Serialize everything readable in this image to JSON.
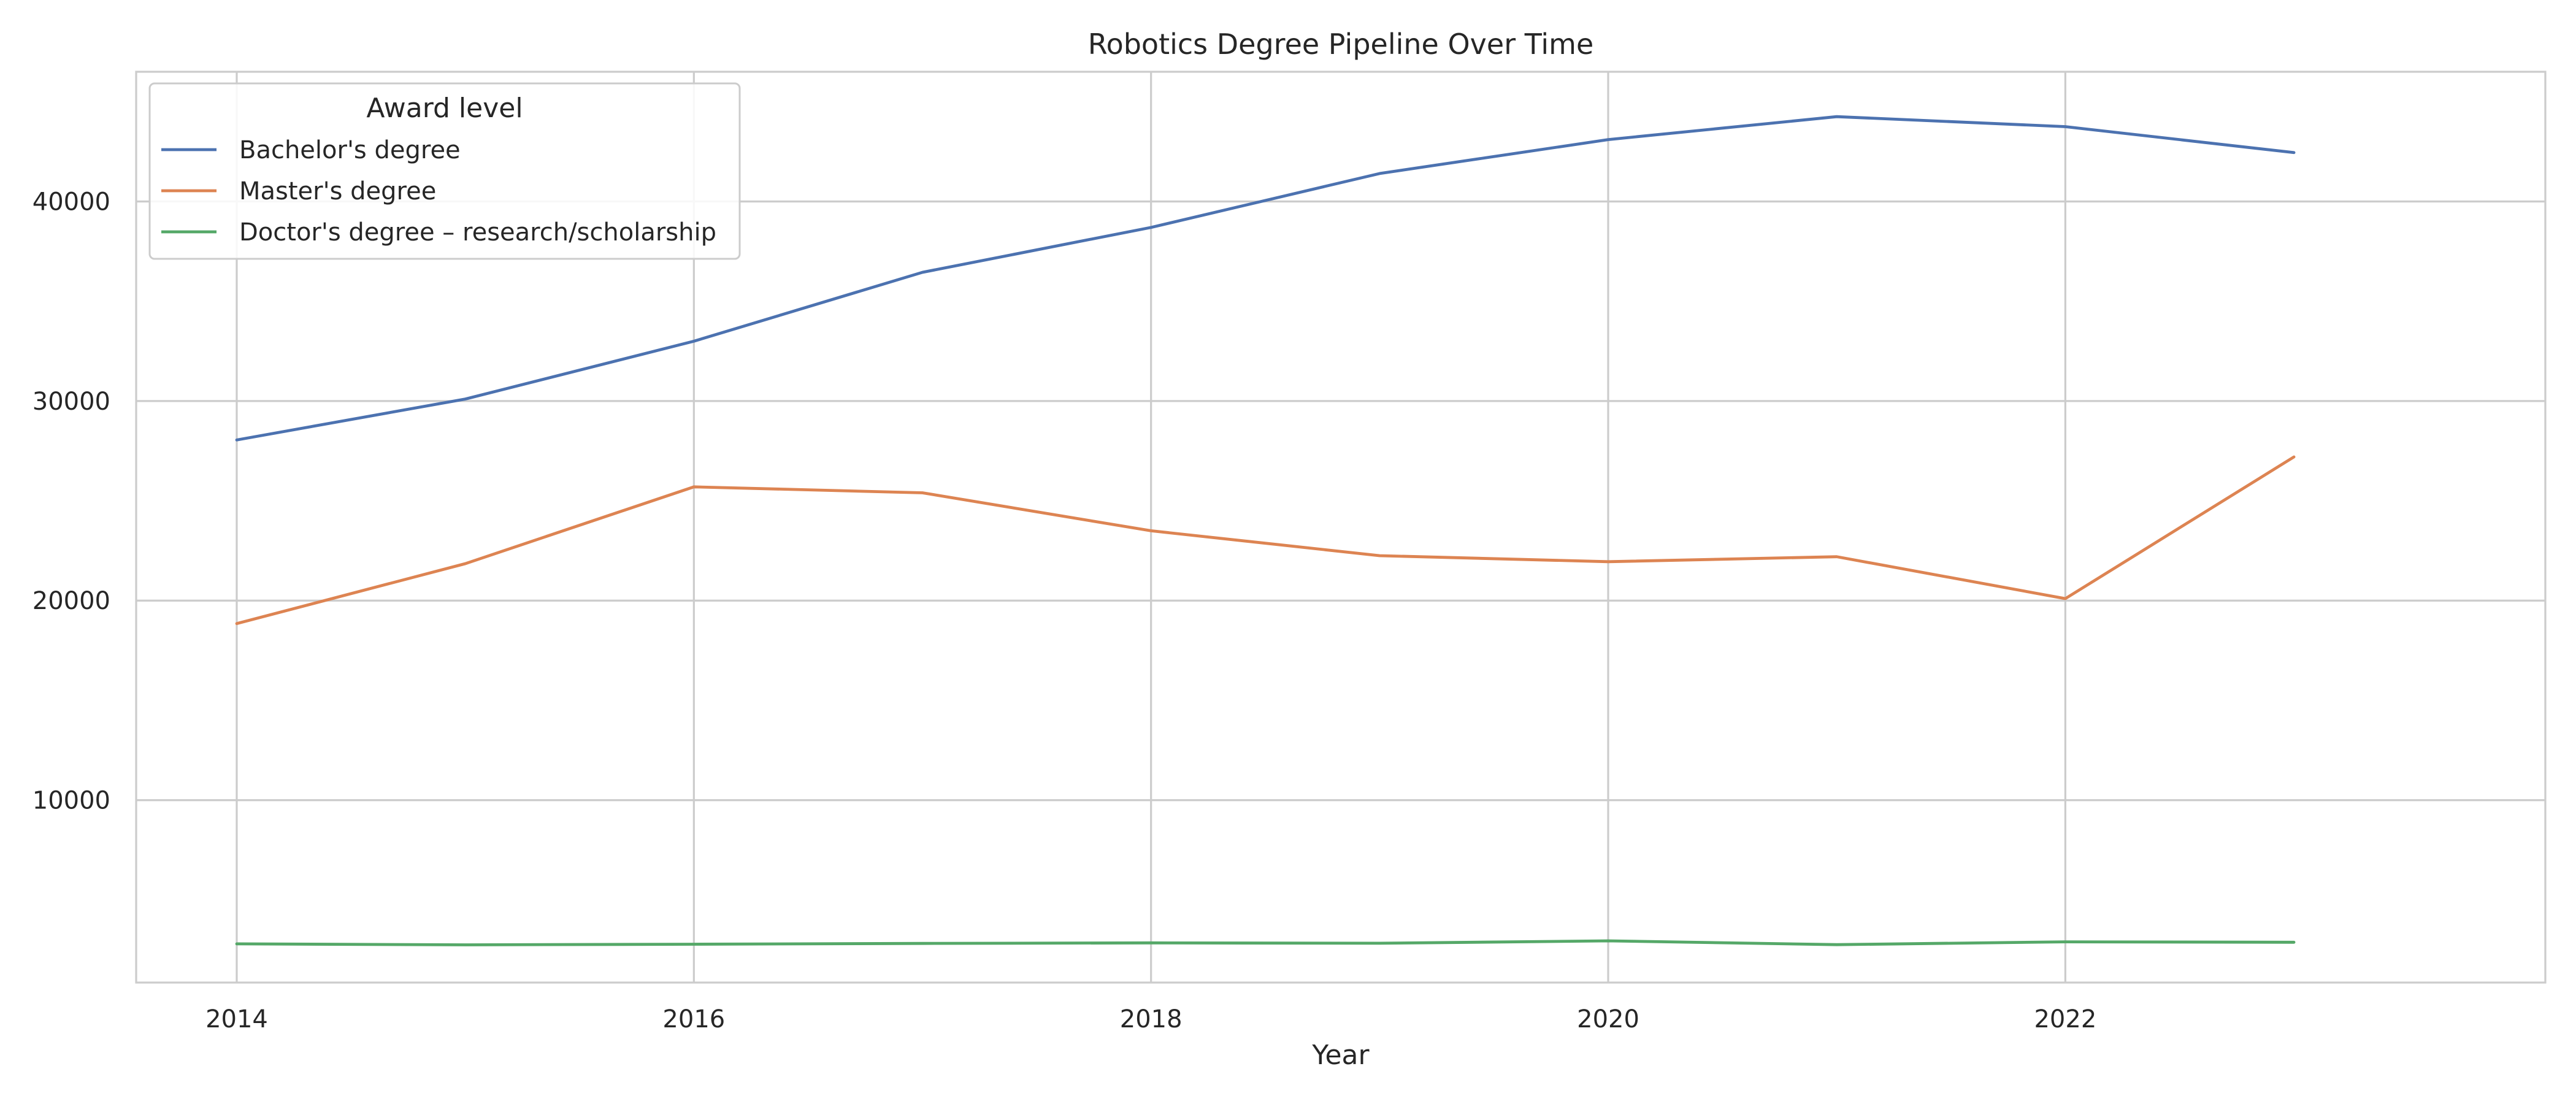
{
  "chart_data": {
    "type": "line",
    "title": "Robotics Degree Pipeline Over Time",
    "xlabel": "Year",
    "ylabel": "",
    "x": [
      2014,
      2015,
      2016,
      2017,
      2018,
      2019,
      2020,
      2021,
      2022,
      2023
    ],
    "xlim": [
      2013.56,
      2024.1
    ],
    "ylim": [
      860,
      46500
    ],
    "xticks": [
      2014,
      2016,
      2018,
      2020,
      2022
    ],
    "yticks": [
      10000,
      20000,
      30000,
      40000
    ],
    "grid": true,
    "legend": {
      "title": "Award level",
      "placement": "top-left"
    },
    "series": [
      {
        "name": "Bachelor's degree",
        "color": "#4c72b0",
        "values": [
          28050,
          30100,
          33000,
          36450,
          38700,
          41400,
          43100,
          44250,
          43750,
          42450
        ]
      },
      {
        "name": "Master's degree",
        "color": "#dd8452",
        "values": [
          18850,
          21850,
          25700,
          25400,
          23500,
          22250,
          21950,
          22200,
          20100,
          27200
        ]
      },
      {
        "name": "Doctor's degree – research/scholarship",
        "color": "#55a868",
        "values": [
          2800,
          2750,
          2780,
          2820,
          2850,
          2830,
          2950,
          2760,
          2900,
          2880
        ]
      }
    ]
  }
}
